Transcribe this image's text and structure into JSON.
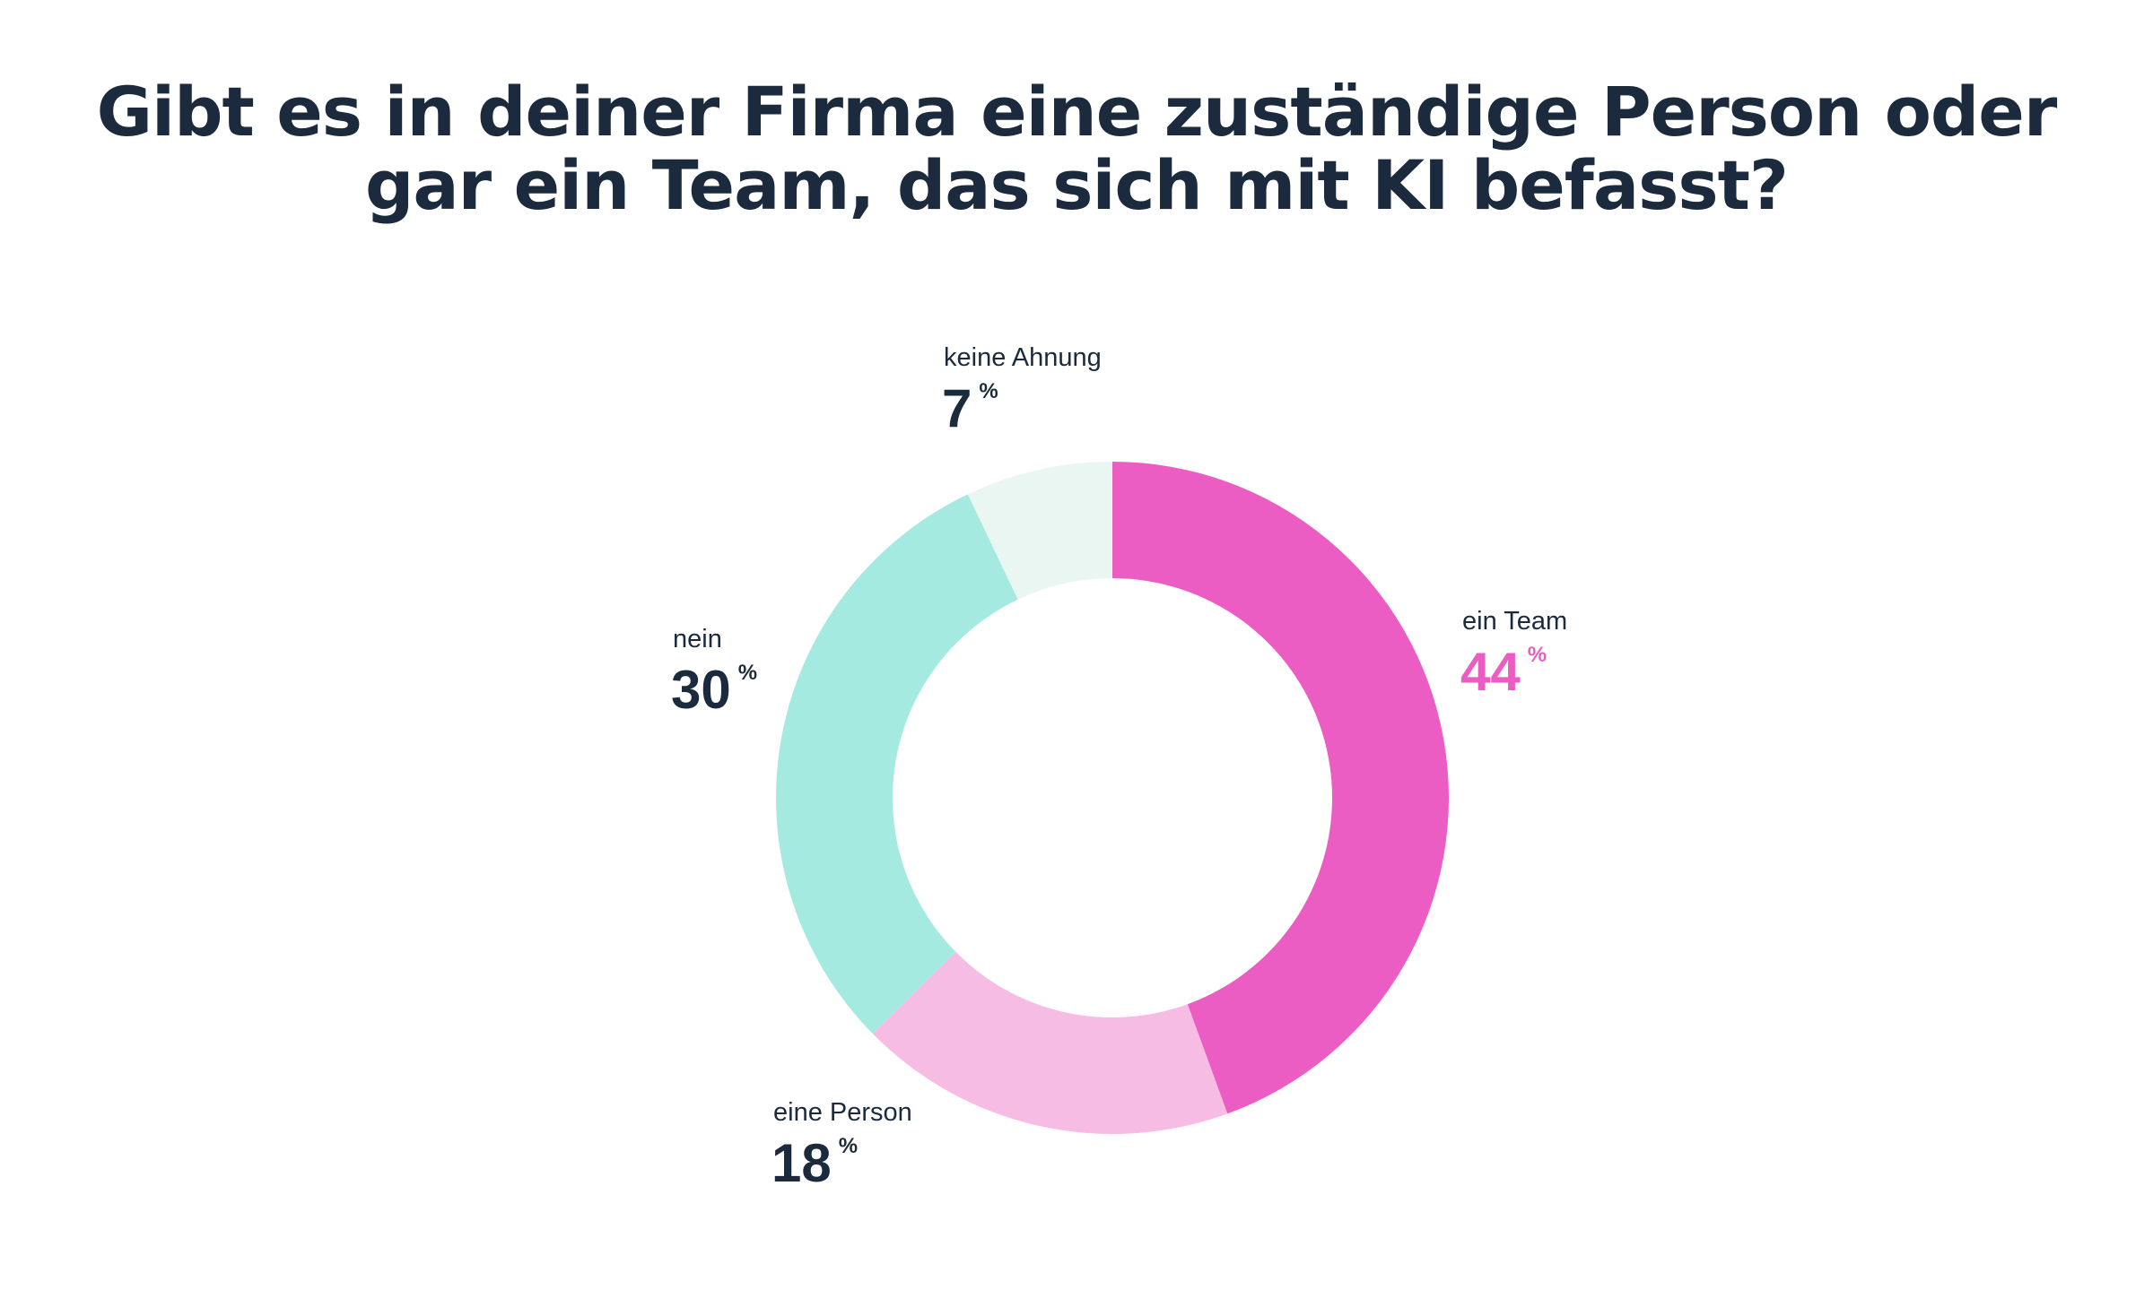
{
  "chart_data": {
    "type": "pie",
    "variant": "donut",
    "title_lines": [
      "Gibt es in deiner Firma eine zuständige Person oder",
      "gar ein Team, das sich mit KI befasst?"
    ],
    "unit": "%",
    "series": [
      {
        "name": "ein Team",
        "value": 44,
        "color": "#ec5dc4",
        "value_color": "#ec5dc4"
      },
      {
        "name": "eine Person",
        "value": 18,
        "color": "#f6bce4",
        "value_color": "#1b2a3c"
      },
      {
        "name": "nein",
        "value": 30,
        "color": "#a5eae0",
        "value_color": "#1b2a3c"
      },
      {
        "name": "keine Ahnung",
        "value": 7,
        "color": "#e9f6f2",
        "value_color": "#1b2a3c"
      }
    ],
    "start_angle_deg": 0,
    "direction": "clockwise"
  }
}
